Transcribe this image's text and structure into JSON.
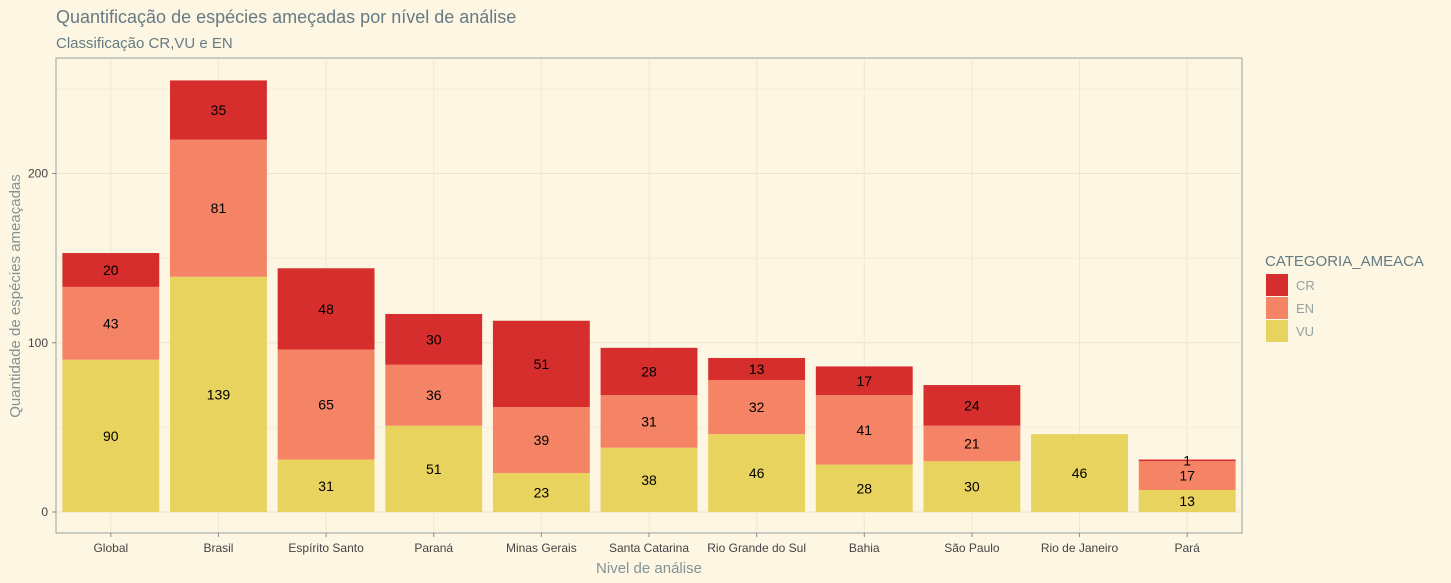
{
  "chart_data": {
    "type": "bar",
    "stacked": true,
    "title": "Quantificação de espécies ameçadas por nível de análise",
    "subtitle": "Classificação CR,VU e EN",
    "xlabel": "Nivel de análise",
    "ylabel": "Quantidade de espécies ameaçadas",
    "ylim": [
      0,
      270
    ],
    "yticks": [
      0,
      100,
      200
    ],
    "grid": true,
    "legend": {
      "title": "CATEGORIA_AMEACA",
      "position": "right"
    },
    "categories": [
      "Global",
      "Brasil",
      "Espírito Santo",
      "Paraná",
      "Minas Gerais",
      "Santa Catarina",
      "Rio Grande do Sul",
      "Bahia",
      "São Paulo",
      "Rio de Janeiro",
      "Pará"
    ],
    "series": [
      {
        "name": "VU",
        "color": "#e8d35f",
        "values": [
          90,
          139,
          31,
          51,
          23,
          38,
          46,
          28,
          30,
          46,
          13
        ]
      },
      {
        "name": "EN",
        "color": "#f58466",
        "values": [
          43,
          81,
          65,
          36,
          39,
          31,
          32,
          41,
          21,
          0,
          17
        ]
      },
      {
        "name": "CR",
        "color": "#d62d2d",
        "values": [
          20,
          35,
          48,
          30,
          51,
          28,
          13,
          17,
          24,
          0,
          1
        ]
      }
    ]
  }
}
